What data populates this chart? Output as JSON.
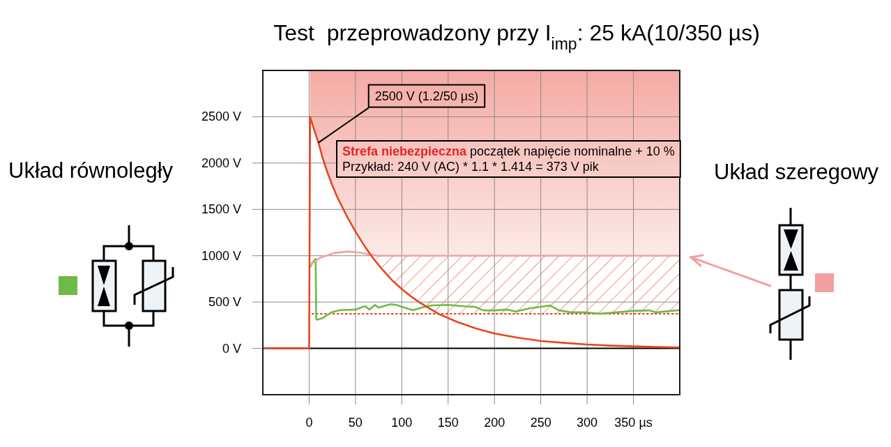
{
  "chart_data": {
    "type": "line",
    "title": "Test  przeprowadzony przy I$_{imp}$: 25 kA(10/350 µs)",
    "xlim": [
      -50,
      400
    ],
    "xticks": [
      0,
      50,
      100,
      150,
      200,
      250,
      300,
      {
        "value": 350,
        "label": "350 µs"
      }
    ],
    "ylim": [
      -500,
      3000
    ],
    "yticks": [
      {
        "value": 0,
        "label": "0 V"
      },
      {
        "value": 500,
        "label": "500 V"
      },
      {
        "value": 1000,
        "label": "1000 V"
      },
      {
        "value": 1500,
        "label": "1500 V"
      },
      {
        "value": 2000,
        "label": "2000 V"
      },
      {
        "value": 2500,
        "label": "2500 V"
      }
    ],
    "grid": true,
    "series": [
      {
        "color": "#e5461f",
        "x": [
          -50,
          0,
          1,
          5,
          10,
          15,
          20,
          25,
          30,
          40,
          50,
          60,
          70,
          80,
          90,
          100,
          110,
          120,
          140,
          160,
          180,
          200,
          225,
          250,
          275,
          300,
          325,
          350,
          375,
          400
        ],
        "values": [
          0,
          0,
          2500,
          2370,
          2220,
          2040,
          1890,
          1760,
          1640,
          1440,
          1260,
          1100,
          960,
          840,
          730,
          640,
          560,
          490,
          370,
          285,
          215,
          160,
          115,
          80,
          60,
          42,
          30,
          22,
          15,
          10
        ]
      },
      {
        "color": "#6cbb45",
        "x": [
          2,
          3.5,
          7,
          7.6,
          9.4,
          15,
          24,
          33,
          50,
          58,
          61,
          65,
          71,
          75,
          83,
          88,
          94,
          103,
          112,
          121,
          132,
          150,
          168,
          179,
          188,
          200,
          214,
          223,
          238,
          250,
          260,
          270,
          282,
          296,
          314,
          332,
          349,
          367,
          375,
          390,
          400
        ],
        "values": [
          890,
          928,
          964,
          315,
          310,
          330,
          389,
          413,
          419,
          448,
          454,
          419,
          469,
          439,
          463,
          477,
          469,
          439,
          413,
          439,
          463,
          469,
          454,
          448,
          410,
          410,
          419,
          398,
          433,
          448,
          463,
          410,
          389,
          389,
          374,
          389,
          404,
          410,
          389,
          404,
          413
        ]
      },
      {
        "color": "#f2a0a0",
        "x": [
          1,
          3.5,
          12,
          27,
          42,
          56,
          68,
          74,
          150,
          250,
          400
        ],
        "values": [
          876,
          920,
          979,
          1029,
          1046,
          1032,
          1008,
          1000,
          1000,
          1000,
          1000
        ]
      }
    ],
    "bands": [
      {
        "axis": "y",
        "from": 1000,
        "to": 3000,
        "color": "#f4aaa2",
        "label": "Strefa niebezpieczna"
      },
      {
        "axis": "y",
        "from": 373,
        "to": 1000,
        "color": "#e8603c"
      }
    ],
    "ref_lines": [
      {
        "axis": "y",
        "value": 373,
        "color": "#e5461f",
        "line_style": "dotted"
      }
    ],
    "annotations": [
      {
        "text": "2500 V (1.2/50 µs)",
        "x": 10,
        "y": 2220
      },
      "Układ równoległy",
      "Układ szeregowy",
      "początek napięcie nominalne + 10 %",
      "Przykład: 240 V (AC) * 1.1 * 1.414 = 373 V pik"
    ]
  }
}
